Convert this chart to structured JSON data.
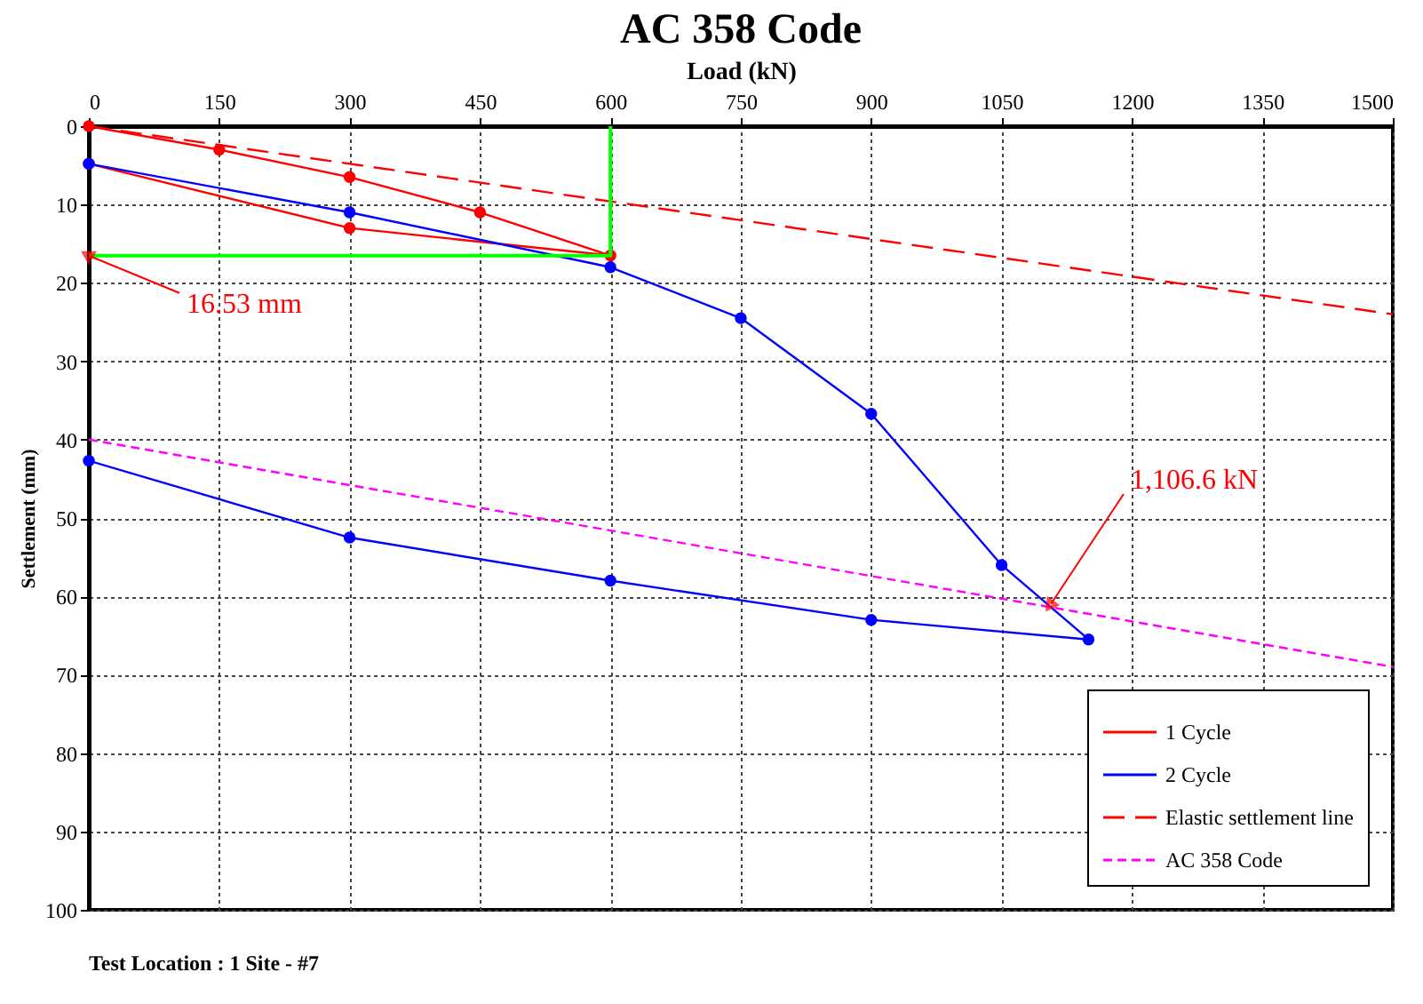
{
  "chart_data": {
    "type": "line",
    "title": "AC 358 Code",
    "xlabel": "Load (kN)",
    "ylabel": "Settlement (mm)",
    "xlim": [
      0,
      1500
    ],
    "xticks": [
      0,
      150,
      300,
      450,
      600,
      750,
      900,
      {
        "value": 1050,
        "label": "1050"
      },
      {
        "value": 1200,
        "label": "1200"
      },
      {
        "value": 1350,
        "label": "1350"
      },
      {
        "value": 1500,
        "label": "1500"
      }
    ],
    "ylim": [
      100,
      0
    ],
    "yticks": [
      0,
      10,
      20,
      30,
      40,
      50,
      60,
      70,
      80,
      90,
      100
    ],
    "grid": true,
    "legend": "bottom right",
    "series": [
      {
        "name": "1 Cycle",
        "color": "#ff0000",
        "marker": "circle",
        "line_style": "solid",
        "x": [
          0,
          150,
          300,
          450,
          600,
          300,
          0
        ],
        "values": [
          0,
          3,
          6.5,
          11,
          16.5,
          13,
          4.8
        ]
      },
      {
        "name": "2 Cycle",
        "color": "#0000ff",
        "marker": "circle",
        "line_style": "solid",
        "x": [
          0,
          300,
          600,
          750,
          900,
          1050,
          1150,
          900,
          600,
          300,
          0
        ],
        "values": [
          4.8,
          11,
          18,
          24.5,
          36.7,
          56,
          65.5,
          63,
          58,
          52.5,
          42.7
        ]
      },
      {
        "name": "Elastic settlement line",
        "color": "#ff0000",
        "marker": "none",
        "line_style": "dashed",
        "x": [
          0,
          1500
        ],
        "values": [
          0,
          24
        ]
      },
      {
        "name": "AC 358 Code",
        "color": "#ff00ff",
        "marker": "none",
        "line_style": "dotted",
        "x": [
          0,
          1500
        ],
        "values": [
          40,
          69
        ]
      },
      {
        "color": "#00ff00",
        "marker": "none",
        "line_style": "solid",
        "x": [
          0,
          600,
          600
        ],
        "values": [
          16.53,
          16.53,
          0
        ]
      }
    ],
    "annotations": [
      {
        "text": "16.53 mm",
        "x": 0,
        "y": 16.53
      },
      {
        "text": "1,106.6 kN",
        "x": 1106.6,
        "y": 61
      },
      "Test Location : 1 Site - #7"
    ]
  }
}
